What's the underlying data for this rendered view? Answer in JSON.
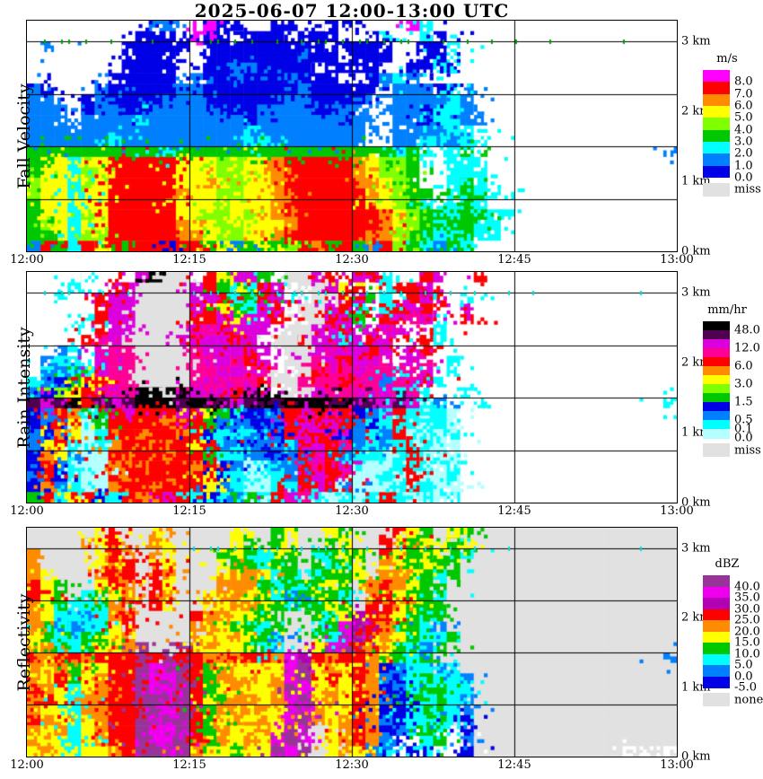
{
  "title": "2025-06-07  12:00-13:00 UTC",
  "x_axis": {
    "labels": [
      "12:00",
      "12:15",
      "12:30",
      "12:45",
      "13:00"
    ]
  },
  "y_axis": {
    "labels": [
      "3 km",
      "2 km",
      "1 km",
      "0 km"
    ],
    "label_heights_km": [
      3,
      2,
      1,
      0
    ],
    "range_km": [
      0,
      3.3
    ],
    "gridline_heights_km": [
      3.0,
      2.25,
      1.5,
      0.75
    ]
  },
  "chart_data": {
    "type": "heatmap",
    "x_range_utc": [
      "12:00",
      "13:00"
    ],
    "x_gridlines": [
      "12:15",
      "12:30",
      "12:45"
    ],
    "grid_cols": 48,
    "grid_rows": 22,
    "notes": "Each grid row spans 0.15 km from 3.3 km (top) to 0 km; each col spans 75 s. Melting layer bright band near 1.45 km until ~12:40; no echo afterwards.",
    "panels": [
      {
        "id": "fall_velocity",
        "ylabel": "Fall Velocity",
        "bg": ".",
        "seed": 7,
        "tick_color": "#00A000",
        "ticks_3km": [
          1,
          2,
          3,
          4,
          6,
          9,
          13,
          14,
          15,
          16,
          18,
          20,
          21,
          22,
          23,
          24,
          25,
          26,
          27,
          28,
          30,
          32,
          34,
          36,
          38,
          44
        ],
        "palette": {
          ".": "#FFFFFF",
          "1": "#0000E6",
          "2": "#0080FF",
          "3": "#00FFFF",
          "4": "#00C800",
          "5": "#80FF00",
          "6": "#FFFF00",
          "7": "#FF8C00",
          "8": "#FF0000",
          "9": "#FF00FF"
        },
        "colorbar": {
          "unit": "m/s",
          "seg_colors": [
            "#FF00FF",
            "#FF0000",
            "#FF8C00",
            "#FFFF00",
            "#80FF00",
            "#00C800",
            "#00FFFF",
            "#0080FF",
            "#0000E6"
          ],
          "labels": [
            [
              1,
              "8.0"
            ],
            [
              2,
              "7.0"
            ],
            [
              3,
              "6.0"
            ],
            [
              4,
              "5.0"
            ],
            [
              5,
              "4.0"
            ],
            [
              6,
              "3.0"
            ],
            [
              7,
              "2.0"
            ],
            [
              8,
              "1.0"
            ],
            [
              9,
              "0.0"
            ]
          ],
          "extra_label": "miss",
          "extra_color": "#E1E1E1"
        },
        "grid": [
          ".*9,2*2,.*2,9,1*2,.*2,1*2,.*2,1*2,.*4,9,3,.*18",
          ".*8,1*3,.,9,1*2,.,1*3,.,1*3,.*2,1,3,.*2,3,1,.*17",
          ".,2,.*5,1*5,.,1*9,.,1*4,.*2,1*2,3,.*16",
          ".*7,1*4,.*2,1*7,2,1*2,.,1*3,.*2,1*2,3,.*16",
          ".*7,1*4,.*2,1*2,2*2,1*4,.,1*4,.*2,1*2,3,1,.*16",
          ".*6,1*5,.,2,1*2,2,1*3,2,1*3,.*2,1,2,3,2,.*19",
          "2,1,.*3,2,1*5,2*2,1*7,2,1*5,.,2*3,1,3,2,.*15",
          "2*2,.*2,1,2,1*4,2*3,1*6,2*2,1*4,2,.,2*4,3,2,.*15",
          "2*3,.,1,2*2,1*2,2*5,1*3,2*4,1*2,2*2,.,2*3,1,3*2,2,.*15",
          "2*3,.,2*4,3,2*7,1,2*6,1,2*2,.,2*2,1,3*2,2*2,.*14",
          "2*16,3,2*8,.*2,2*4,3*2,.*15",
          "2*6,3,2*9,3*2,2*7,.*2,2*2,3*2,2,3*2,.*14",
          "4*10,3,4*16,3,4,3,.,3,4,.*14,2",
          "4,6*2,3,6*2,8*5,6*3,5*2,6*2,7,8*5,7,6,5*2,4,.*2,3*3,.*14",
          "4,6*2,3,5,6,8*5,6*3,5*2,6*2,7,8*5,7,6,5*2,4,.*2,3*3,.*14",
          "5,6*2,3,5,6,8*5,6*2,7,6,5,6*2,7,8*5,7*2,6,5,4,.*2,3,4,3,.*14",
          "5,6*2,3,6*2,8*5,7,6*2,5*2,6*2,7*2,8*5,7,6,5,4*2,.,3,4,3*2,.*13",
          "4,6*2,3,6*2,8*5,6*3,5,6*3,7,8*6,6*2,5,4,3,.,3,4,3,.*14",
          "4,6*2,3,5,6,8*5,6*2,5*2,6,5,6,7*2,8*6,7,6,5,4*2,3,4*2,3*2,.*12",
          "4,5,6,3,6*2,8*5,7,6*2,5*2,6*3,7,8*6,7,6,5,4,3,4*2,3*2,.*13",
          "4*2,6,3,5*2,8*5,7*2,6,5*2,6*2,7,8*6,7*2,5,4*2,3*2,4,3*2,.*13",
          "2,8,4,3,8,6,8,4,8*2,1,8*2,4,6,2,4,6,4,5,8,7,4,8,4,2,8,5,4,3,2,4,3,.*15"
        ]
      },
      {
        "id": "rain_intensity",
        "ylabel": "Rain Intensity",
        "bg": ".",
        "seed": 13,
        "tick_color": "#00DCDC",
        "ticks_3km": [
          1,
          2,
          3,
          5,
          7,
          12,
          13,
          14,
          15,
          16,
          17,
          18,
          19,
          20,
          21,
          22,
          23,
          25,
          26,
          27,
          29,
          31,
          33,
          35,
          37,
          45
        ],
        "palette": {
          ".": "#FFFFFF",
          "1": "#B4FFFF",
          "2": "#00FFFF",
          "3": "#0080FF",
          "4": "#0000E6",
          "5": "#00C800",
          "6": "#80FF00",
          "7": "#FFFF00",
          "8": "#FF8C00",
          "9": "#FF0000",
          "a": "#FF0096",
          "b": "#DC00DC",
          "c": "#500050",
          "d": "#000000",
          "g": "#E1E1E1"
        },
        "colorbar": {
          "unit": "mm/hr",
          "seg_colors": [
            "#000000",
            "#500050",
            "#DC00DC",
            "#FF0096",
            "#FF0000",
            "#FF8C00",
            "#FFFF00",
            "#80FF00",
            "#00C800",
            "#0000E6",
            "#0080FF",
            "#00FFFF",
            "#B4FFFF"
          ],
          "labels": [
            [
              1,
              "48.0"
            ],
            [
              3,
              "12.0"
            ],
            [
              5,
              "6.0"
            ],
            [
              7,
              "3.0"
            ],
            [
              9,
              "1.5"
            ],
            [
              11,
              "0.5"
            ],
            [
              12,
              "0.1"
            ],
            [
              13,
              "0.0"
            ]
          ],
          "extra_label": "miss",
          "extra_color": "#E1E1E1"
        },
        "grid": [
          ".*4,2,.*3,b,d,g*2,.,9,7,b*2,5,.,g*2,b,9,.,b,9,2,.*2,9,b,.*2,9,.*14",
          ".*3,2,.*2,9,b,g*4,b,9,5,7,2,9,b,.,g*2,b,7,9,.,2,9*2,b,.*16",
          ".*2,2,.*2,9,b*2,g*4,b*2,9,2,5,9,b,2,.,g*2,9,b,5,2,.,9,b,9,.,2,.*14",
          ".*5,9,b*2,g*4,b,9,7,5,2,b,9,.,g*2,b,9,2,.,2,9,b,9,.*2,b,.*15",
          ".*4,2,9,b*2,g*4,9*2,b,7,b*2,9,.,g*2,9,b,5,.,9,b,a,b,.*2,9,.*15",
          ".*3,2,.,9,b*2,g*4,b,a,9,b*3,.,g*2,b*2,9,.,b,a,b,.*2,2,.*17",
          ".*4,9,a,b,g*4,b,9,b*2,9,b,.,g*2,9,b*2,2,b,9,b,.*2,9,2,.*17",
          ".*2,3,2,.,b,a*2,g*4,a,b*3,9,b,.,g*2,b,a,b*2,9,b,.,b,9,.*18",
          ".,3,2*2,.,b,a*2,g*4,a*2,b,a,9,b,.,g*2,a,b,9,b*2,a,.,b,a,.,2,.*15",
          ".,2,3,5,2,b,a*2,g*4,a*2,b*2,a*2,.,g*2,9,a*2,b,a*2,2,a,b,.,2,.*15",
          "2,3,4,5,7,9,a*2,g*4,a,b,a*3,9,g*2,a*3,9,a*2,3,a,b,9,2,.*15",
          "3,4,6,7,9,a,b,a,d*2,g,d,b,a,b,9,b,d,.,g*2,b,a*2,b,a,b,2,a,2,.*2,2,.*15",
          "c,b,c,d,9,c,b,c,d*3,c,d*2,c,b,c,d,c,d*3,c,d,c*2,b,c,b,2,3,.*2,2,.*13,2",
          "4,3,9,8,2,5,9,b,9*3,b,9,7,5,2,4,3,4,9,b,9,a,9,4,3,2,9,2,1,2,1,.*16",
          "4,3,9,7,1,5,9*4,8,9*2,5,3,4,3,4,3,9,b,9,b,9,3,4,2,9,2,1,2,1,.*16",
          "3,4,8,7,1,2,9*2,8,9*2,8,9,4,2,3,2,3,4,9,b,9,b,4,3,2,3,9,1,2,1,2,.*16",
          "3,7,9,2,1,2,8,9*2,8,9*2,7,9,3,2,3,4,3,2,9,b,9,a,3,2,3,2,9,2,1*2,.*16",
          "4,8,7,3,1*2,9,8,9*2,8,9*2,5,2*2,3*2,4,3,9,b,9,3,2*2,1,2,9,1,2,1,.*16",
          "4,9,3,2,1*2,8,9,8,9*3,8,9,4,3,1,2,3*2,9,a,9,b,2,1*2,2,9,2,1,2,.*16",
          "3,9,4,2,1*2,9,8,9*2,8,9*2,7,4,2*2,1,2,3,9,b,9,a,1*2,2,1,9,1*2,2,.*16",
          "4,8,3,2,1*2,8,9*2,8,9*3,7,3,2,1*2,2*2,9,b,9,3,1*3,2,9,2,1*2,.*16",
          "5,9,2,7,9,4,2,9,8,9,b,9,2,4,2,3,5,2,9,b,a,2,1,2,1,2,9,2,1,2,1,2,.*16"
        ]
      },
      {
        "id": "reflectivity",
        "ylabel": "Reflectivity",
        "bg": "g",
        "seed": 21,
        "tick_color": "#00DCDC",
        "ticks_3km": [
          12,
          13,
          14,
          15,
          16,
          17,
          18,
          19,
          20,
          21,
          22,
          23,
          25,
          27,
          29,
          31,
          33,
          35,
          45
        ],
        "palette": {
          "g": "#E1E1E1",
          "w": "#FFFFFF",
          "1": "#0000E6",
          "2": "#0080FF",
          "3": "#00FFFF",
          "4": "#00C800",
          "5": "#FFFF00",
          "6": "#FF8C00",
          "7": "#FF0000",
          "8": "#B400B4",
          "9": "#EE00EE",
          "a": "#993399"
        },
        "colorbar": {
          "unit": "dBZ",
          "seg_colors": [
            "#993399",
            "#EE00EE",
            "#B400B4",
            "#FF0000",
            "#FF8C00",
            "#FFFF00",
            "#00C800",
            "#00FFFF",
            "#0080FF",
            "#0000E6"
          ],
          "labels": [
            [
              1,
              "40.0"
            ],
            [
              2,
              "35.0"
            ],
            [
              3,
              "30.0"
            ],
            [
              4,
              "25.0"
            ],
            [
              5,
              "20.0"
            ],
            [
              6,
              "15.0"
            ],
            [
              7,
              "10.0"
            ],
            [
              8,
              "5.0"
            ],
            [
              9,
              "0.0"
            ],
            [
              10,
              "-5.0"
            ]
          ],
          "extra_label": "none",
          "extra_color": "#E1E1E1"
        },
        "grid": [
          "g*5,5,7,g*2,5,6,g*4,5,g*2,4,5,g*2,5,4,g*3,7,5,4,g,5,4,g*15",
          "g*4,6,5,7,g*2,6,5,g*4,5,4,g,4,5,g*2,4,5,g*2,7,6,4,5,g,4,5,g*14",
          "6,g*4,5,7,6,g,6,5,g*3,4,5,4,3,5,4,g,3,4,5,4,g,7,5,4*2,5,4,3,g*12",
          "6,g*4,5,6,7,g,7,5,g*3,5,4*2,3,4*2,g,4,3,4,5,g,6,5,4,5,4*2,g*15",
          "6,5,g*3,6,7*2,g,7,6,g*3,5,6*2,5,3,4,g,3,4*2,5,g,6*2,5,4,3,4,g*16",
          "7,5,4,g*2,5,7,6,g,7,5,g*3,6*3,4,3,4,3,4,5,4,g,6,7,6,5,4*2,g*14",
          "7,5,4,g,3,4,5,6,g,7,6,g*2,5,6*2,5,4,3,2,4,5,4,3,g,6,7,5,4*2,3,g*14",
          "6,5,4,3*2,4,6,7,g,7,5,g*2,5*2,6*2,5,4,3,4*2,5,4,g,7*2,6,5,4*2,g*14",
          "6,5,3*2,2,3,6,7,g*4,7,6*2,5*2,4*2,g*2,4,3,5,8,7*2,5,4,3,4,g*17",
          "6,4,3,2,3*2,5,7,g*4,6*2,5,4*2,3,4,g*2,3,4,9,8,7,6,4*2,3,2,g*16",
          "5,4,3*2,4*2,5,6,g*4,6,5*2,6,5,4,2,g*2,4,3,9,a,7,6,5,4,3*2,4,g*15",
          "5,6,4,3,4,5*2,6,a,g*2,a,5,6,5*2,4,3*2,g*2,5,9,a,7,6,5,4,3,2,4,g*17",
          "7,6,7*2,6,7*3,a,7,a,7*2,6,7,6,7*2,6,9,8,7,6,7*2,6,5,4,3,4,g*17,2",
          "6,5,6,4,5*2,7*2,a,9,a*2,7,4,6,5*2,6,5,9,a,5,6,5,7,6,1,2,3*2,2,3,g*16",
          "6,5,7,4,5,6,7*2,a,9*2,a,7,4,6*2,5*2,6,9,a,5,7,5,7,6,2,1,3,4,3*2,2,g*16",
          "7,6,5,3,5,6,7*2,a,9*2,a,7,4,5,6,5*2,6,a,9,5,6,5,7,6,1,2,3,4*2,3*2,g*16",
          "6,7,5,3,6*2,7*2,a*2,9,a,7,5,4,6*2,5,6,9,a,5,6,5,7,6,2,1,4,3,4,3,2,g*16",
          "6,5*2,3,6*2,7*2,a*2,9,a,7,4,6,5,6*2,5,a,9,6,5*2,7,6,1*2,3,4,3*2,2,g*16",
          "7,6,5,3,5,6,7*2,a,9,a*2,7,4,5,6,5,6,5,9,a,6,5,6,7,6,2,1,3*2,4,3,1,g*16",
          "6,5,6,3,5,6,7*2,a,9*2,a,7,4,6,5*2,6,5,a,9,g,5,6,7,6,1,2,3,4,3,w,1,g*16",
          "6,5*2,3,5,6,7*2,a,9*2,a,7,4,6,5,6,5,9,a,9,g,5,6,7,6,2,1,w,3,4,w,2,g*16",
          "5,6,5,3,5*2,6,7,a*2,9,a,6,5*2,4,5*2,a,9,a,g,5,6,5,2,3,w,1,3,w*2,1,g*11,w,g*2,w,g"
        ]
      }
    ]
  }
}
